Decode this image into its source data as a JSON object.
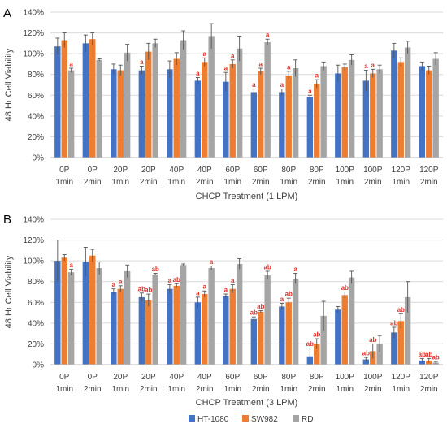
{
  "chart_data": [
    {
      "panel": "A",
      "type": "bar",
      "xlabel": "CHCP Treatment (1 LPM)",
      "ylabel": "48 Hr Cell Viability",
      "ylim": [
        0,
        140
      ],
      "yticks": [
        "0%",
        "20%",
        "40%",
        "60%",
        "80%",
        "100%",
        "120%",
        "140%"
      ],
      "categories": [
        [
          "0P",
          "1min"
        ],
        [
          "0P",
          "2min"
        ],
        [
          "20P",
          "1min"
        ],
        [
          "20P",
          "2min"
        ],
        [
          "40P",
          "1min"
        ],
        [
          "40P",
          "2min"
        ],
        [
          "60P",
          "1min"
        ],
        [
          "60P",
          "2min"
        ],
        [
          "80P",
          "1min"
        ],
        [
          "80P",
          "2min"
        ],
        [
          "100P",
          "1min"
        ],
        [
          "100P",
          "2min"
        ],
        [
          "120P",
          "1min"
        ],
        [
          "120P",
          "2min"
        ]
      ],
      "series": [
        {
          "name": "HT-1080",
          "color": "#4472c4",
          "values": [
            107,
            110,
            85,
            84,
            85,
            74,
            73,
            63,
            63,
            58,
            81,
            74,
            103,
            88
          ],
          "errors": [
            8,
            8,
            5,
            4,
            8,
            3,
            9,
            3,
            3,
            2,
            8,
            10,
            7,
            4
          ],
          "labels": [
            "",
            "",
            "",
            "a",
            "",
            "a",
            "a",
            "a",
            "a",
            "a",
            "",
            "a",
            "",
            ""
          ]
        },
        {
          "name": "SW982",
          "color": "#ed7d31",
          "values": [
            113,
            114,
            84,
            102,
            95,
            92,
            90,
            83,
            79,
            71,
            87,
            81,
            92,
            84
          ],
          "errors": [
            7,
            6,
            5,
            8,
            6,
            4,
            4,
            3,
            4,
            4,
            3,
            4,
            4,
            4
          ],
          "labels": [
            "",
            "",
            "",
            "",
            "",
            "a",
            "a",
            "a",
            "a",
            "a",
            "",
            "a",
            "",
            ""
          ]
        },
        {
          "name": "RD",
          "color": "#a5a5a5",
          "values": [
            84,
            94,
            101,
            110,
            113,
            117,
            105,
            111,
            86,
            88,
            94,
            85,
            106,
            95
          ],
          "errors": [
            2,
            1,
            8,
            4,
            9,
            12,
            12,
            3,
            8,
            4,
            5,
            4,
            6,
            6
          ],
          "labels": [
            "a",
            "",
            "",
            "",
            "",
            "",
            "",
            "a",
            "",
            "",
            "",
            "",
            "",
            ""
          ]
        }
      ]
    },
    {
      "panel": "B",
      "type": "bar",
      "xlabel": "CHCP Treatment (3 LPM)",
      "ylabel": "48 Hr Cell Viability",
      "ylim": [
        0,
        140
      ],
      "yticks": [
        "0%",
        "20%",
        "40%",
        "60%",
        "80%",
        "100%",
        "120%",
        "140%"
      ],
      "categories": [
        [
          "0P",
          "1min"
        ],
        [
          "0P",
          "2min"
        ],
        [
          "20P",
          "1min"
        ],
        [
          "20P",
          "2min"
        ],
        [
          "40P",
          "1min"
        ],
        [
          "40P",
          "2min"
        ],
        [
          "60P",
          "1min"
        ],
        [
          "60P",
          "2min"
        ],
        [
          "80P",
          "1min"
        ],
        [
          "80P",
          "2min"
        ],
        [
          "100P",
          "1min"
        ],
        [
          "100P",
          "2min"
        ],
        [
          "120P",
          "1min"
        ],
        [
          "120P",
          "2min"
        ]
      ],
      "series": [
        {
          "name": "HT-1080",
          "color": "#4472c4",
          "values": [
            100,
            99,
            70,
            65,
            73,
            60,
            66,
            44,
            56,
            8,
            53,
            5,
            31,
            4
          ],
          "errors": [
            20,
            14,
            3,
            4,
            4,
            5,
            2,
            2,
            3,
            8,
            3,
            2,
            5,
            2
          ],
          "labels": [
            "",
            "",
            "a",
            "ab",
            "a",
            "a",
            "a",
            "ab",
            "a",
            "ab",
            "",
            "ab",
            "ab",
            "ab"
          ]
        },
        {
          "name": "SW982",
          "color": "#ed7d31",
          "values": [
            103,
            105,
            73,
            62,
            76,
            68,
            73,
            51,
            60,
            20,
            67,
            13,
            42,
            4
          ],
          "errors": [
            3,
            6,
            3,
            6,
            2,
            3,
            4,
            1,
            4,
            5,
            3,
            7,
            7,
            2
          ],
          "labels": [
            "",
            "",
            "a",
            "ab",
            "ab",
            "a",
            "a",
            "ab",
            "ab",
            "ab",
            "ab",
            "ab",
            "ab",
            "ab"
          ]
        },
        {
          "name": "RD",
          "color": "#a5a5a5",
          "values": [
            89,
            93,
            90,
            87,
            96,
            93,
            97,
            86,
            83,
            47,
            84,
            20,
            65,
            2
          ],
          "errors": [
            3,
            6,
            6,
            1,
            1,
            2,
            5,
            4,
            5,
            14,
            6,
            8,
            15,
            1
          ],
          "labels": [
            "a",
            "",
            "",
            "ab",
            "",
            "a",
            "",
            "ab",
            "a",
            "",
            "",
            "",
            "",
            "ab"
          ]
        }
      ]
    }
  ],
  "legend": {
    "position": "bottom-center",
    "items": [
      {
        "name": "HT-1080",
        "color": "#4472c4"
      },
      {
        "name": "SW982",
        "color": "#ed7d31"
      },
      {
        "name": "RD",
        "color": "#a5a5a5"
      }
    ]
  }
}
